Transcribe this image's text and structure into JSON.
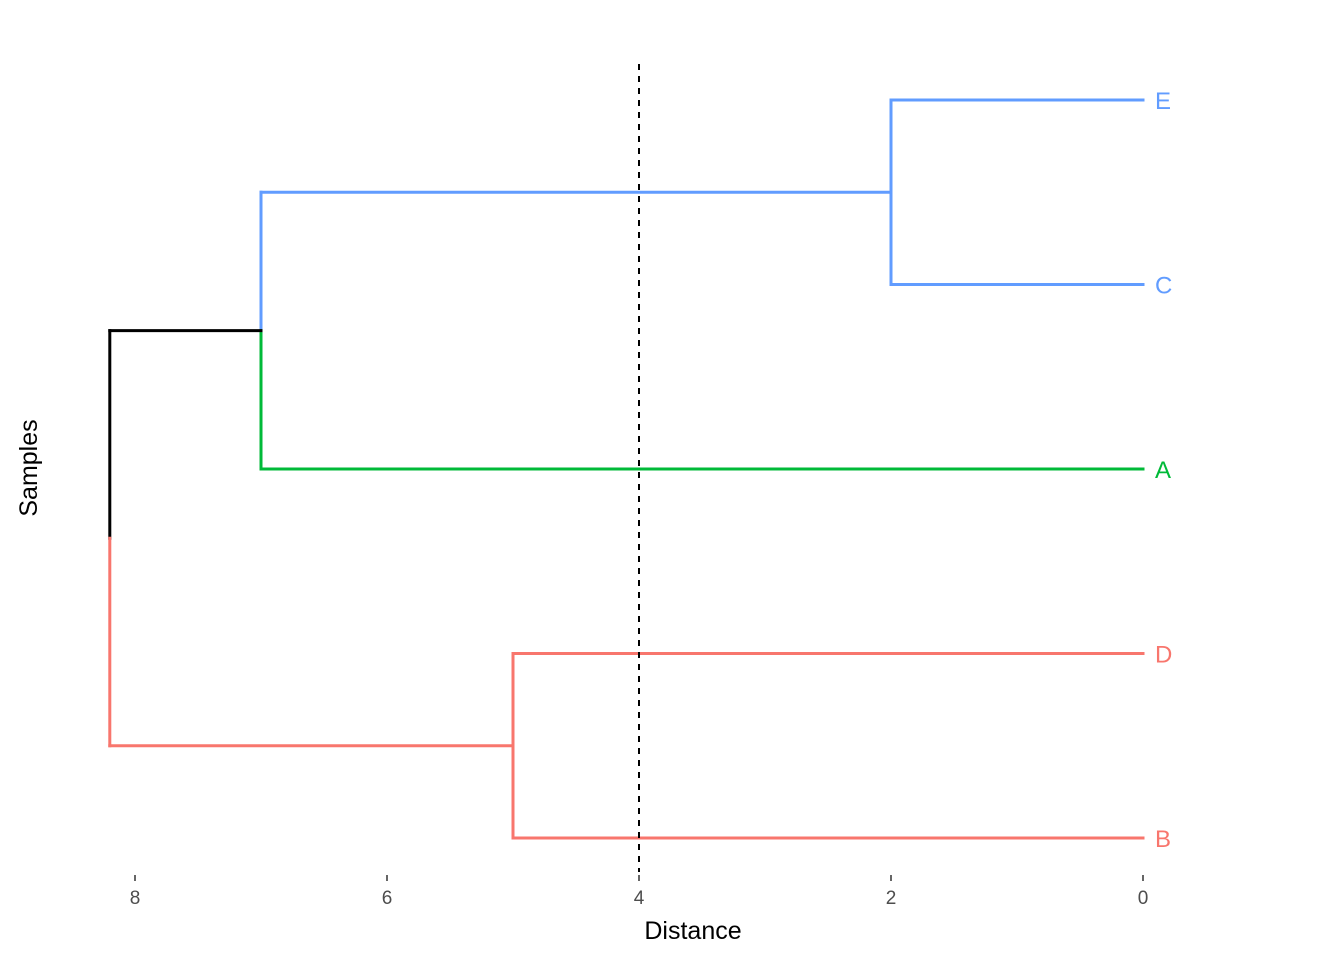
{
  "chart_data": {
    "type": "dendrogram",
    "orientation": "horizontal",
    "xlabel": "Distance",
    "ylabel": "Samples",
    "xlim": [
      8.2,
      0
    ],
    "x_ticks": [
      8,
      6,
      4,
      2,
      0
    ],
    "x_tick_labels": [
      "8",
      "6",
      "4",
      "2",
      "0"
    ],
    "cut_height": 4,
    "grid": false,
    "leaves": [
      {
        "label": "E",
        "order": 1,
        "color": "#619CFF"
      },
      {
        "label": "C",
        "order": 2,
        "color": "#619CFF"
      },
      {
        "label": "A",
        "order": 3,
        "color": "#00BA38"
      },
      {
        "label": "D",
        "order": 4,
        "color": "#F8766D"
      },
      {
        "label": "B",
        "order": 5,
        "color": "#F8766D"
      }
    ],
    "merges": [
      {
        "members": [
          "E",
          "C"
        ],
        "height": 2,
        "color": "#619CFF"
      },
      {
        "members": [
          "D",
          "B"
        ],
        "height": 5,
        "color": "#F8766D"
      },
      {
        "members": [
          "E,C",
          "A"
        ],
        "height": 7,
        "color_upper": "#619CFF",
        "color_lower": "#00BA38"
      },
      {
        "members": [
          "E,C,A",
          "D,B"
        ],
        "height": 8.2,
        "color_upper": "#000000",
        "color_lower": "#F8766D"
      }
    ],
    "colors": {
      "blue": "#619CFF",
      "green": "#00BA38",
      "red": "#F8766D",
      "root": "#000000",
      "cut_line": "#000000"
    }
  }
}
